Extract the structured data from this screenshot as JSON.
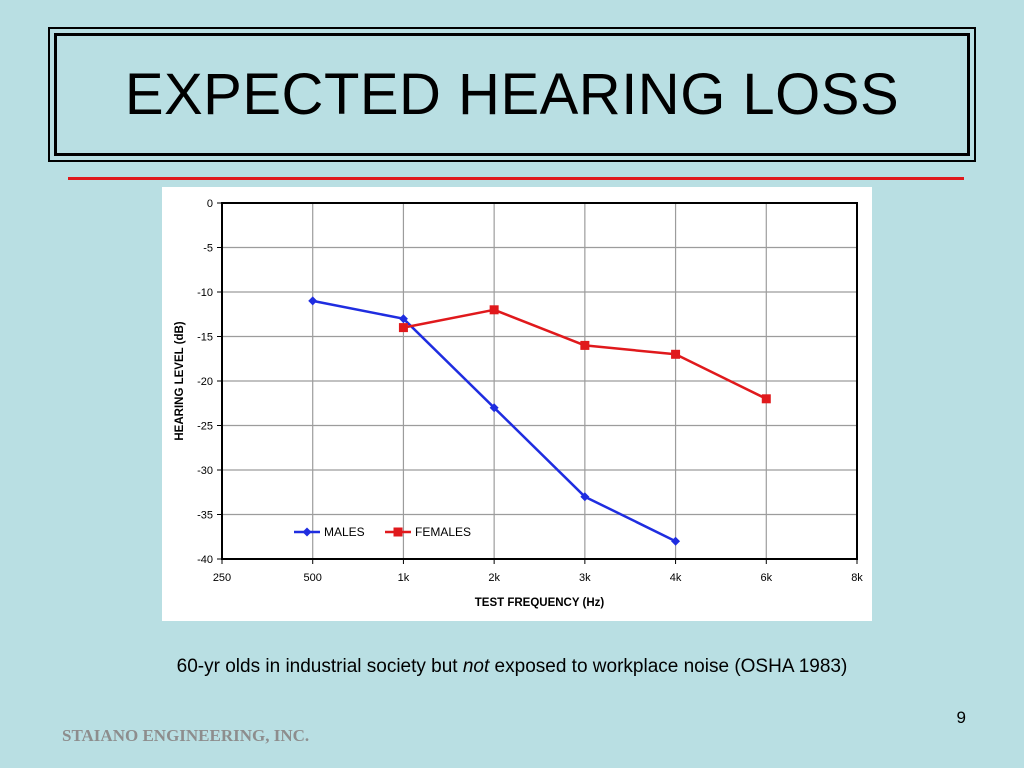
{
  "slide": {
    "title": "EXPECTED HEARING LOSS",
    "caption_before": "60-yr olds in industrial society but ",
    "caption_emphasis": "not",
    "caption_after": " exposed to workplace noise (OSHA 1983)",
    "page_number": "9",
    "footer": "STAIANO ENGINEERING, INC."
  },
  "colors": {
    "background": "#b9dfe3",
    "rule": "#e0191c",
    "males": "#1f2de0",
    "females": "#e0191c",
    "footer_text": "#8d8d8d"
  },
  "chart_data": {
    "type": "line",
    "xlabel": "TEST FREQUENCY (Hz)",
    "ylabel": "HEARING LEVEL (dB)",
    "categories": [
      "250",
      "500",
      "1k",
      "2k",
      "3k",
      "4k",
      "6k",
      "8k"
    ],
    "ylim": [
      -40,
      0
    ],
    "yticks": [
      0,
      -5,
      -10,
      -15,
      -20,
      -25,
      -30,
      -35,
      -40
    ],
    "grid": true,
    "legend": "bottom-left",
    "series": [
      {
        "name": "MALES",
        "marker": "diamond",
        "color": "#1f2de0",
        "values": [
          null,
          -11,
          -13,
          -23,
          -33,
          -38,
          null,
          null
        ]
      },
      {
        "name": "FEMALES",
        "marker": "square",
        "color": "#e0191c",
        "values": [
          null,
          null,
          -14,
          -12,
          -16,
          -17,
          -22,
          null
        ]
      }
    ]
  }
}
